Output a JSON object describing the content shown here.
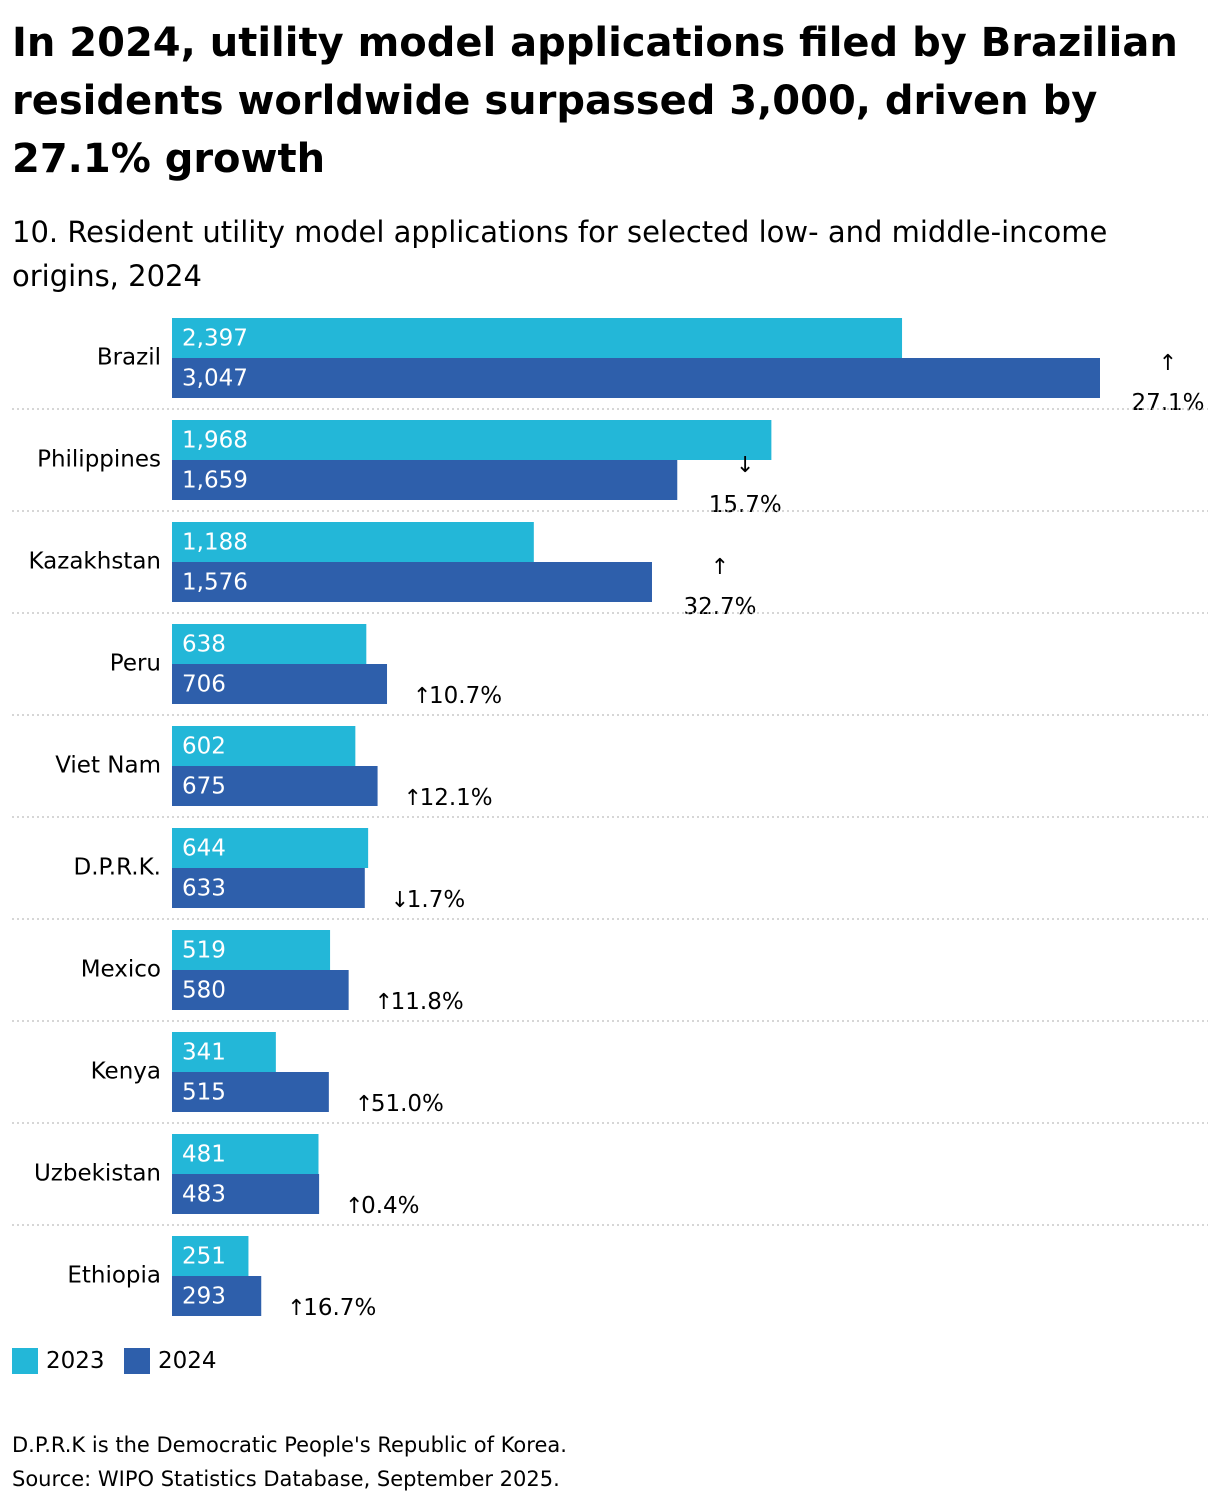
{
  "header": {
    "title": "In 2024, utility model applications filed by Brazilian residents worldwide surpassed 3,000, driven by 27.1% growth",
    "subtitle": "10. Resident utility model applications for selected low- and middle-income origins, 2024"
  },
  "colors": {
    "y2023": "#23B7D8",
    "y2024": "#2E5FAB",
    "separator": "#BDBDBD"
  },
  "chart_data": {
    "type": "bar",
    "orientation": "horizontal",
    "categories": [
      "Brazil",
      "Philippines",
      "Kazakhstan",
      "Peru",
      "Viet Nam",
      "D.P.R.K.",
      "Mexico",
      "Kenya",
      "Uzbekistan",
      "Ethiopia"
    ],
    "series": [
      {
        "name": "2023",
        "values": [
          2397,
          1968,
          1188,
          638,
          602,
          644,
          519,
          341,
          481,
          251
        ],
        "labels": [
          "2,397",
          "1,968",
          "1,188",
          "638",
          "602",
          "644",
          "519",
          "341",
          "481",
          "251"
        ]
      },
      {
        "name": "2024",
        "values": [
          3047,
          1659,
          1576,
          706,
          675,
          633,
          580,
          515,
          483,
          293
        ],
        "labels": [
          "3,047",
          "1,659",
          "1,576",
          "706",
          "675",
          "633",
          "580",
          "515",
          "483",
          "293"
        ]
      }
    ],
    "growth": [
      {
        "direction": "up",
        "arrow": "↑",
        "label": "27.1%"
      },
      {
        "direction": "down",
        "arrow": "↓",
        "label": "15.7%"
      },
      {
        "direction": "up",
        "arrow": "↑",
        "label": "32.7%"
      },
      {
        "direction": "up",
        "arrow": "↑",
        "label": "10.7%"
      },
      {
        "direction": "up",
        "arrow": "↑",
        "label": "12.1%"
      },
      {
        "direction": "down",
        "arrow": "↓",
        "label": "1.7%"
      },
      {
        "direction": "up",
        "arrow": "↑",
        "label": "11.8%"
      },
      {
        "direction": "up",
        "arrow": "↑",
        "label": "51.0%"
      },
      {
        "direction": "up",
        "arrow": "↑",
        "label": "0.4%"
      },
      {
        "direction": "up",
        "arrow": "↑",
        "label": "16.7%"
      }
    ],
    "xlim": [
      0,
      3047
    ],
    "grid": false,
    "legend_position": "bottom-left"
  },
  "legend": {
    "items": [
      "2023",
      "2024"
    ]
  },
  "notes": {
    "footnote": "D.P.R.K is the Democratic People's Republic of Korea.",
    "source": "Source: WIPO Statistics Database, September 2025."
  }
}
